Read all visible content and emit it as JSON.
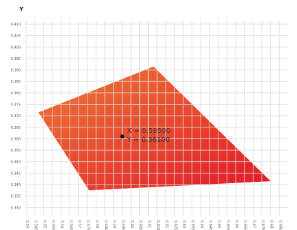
{
  "chart_data": {
    "type": "area",
    "title": "",
    "xlabel": "",
    "ylabel": "Y",
    "xlim": [
      0.54,
      0.69
    ],
    "ylim": [
      0.3265,
      0.4115
    ],
    "x_ticks": [
      "0.54",
      "0.545",
      "0.55",
      "0.555",
      "0.56",
      "0.565",
      "0.57",
      "0.575",
      "0.58",
      "0.585",
      "0.59",
      "0.595",
      "0.60",
      "0.605",
      "0.61",
      "0.615",
      "0.62",
      "0.625",
      "0.63",
      "0.635",
      "0.64",
      "0.645",
      "0.65",
      "0.655",
      "0.66",
      "0.665",
      "0.67",
      "0.675",
      "0.68",
      "0.685"
    ],
    "y_ticks": [
      "0.330",
      "0.335",
      "0.340",
      "0.345",
      "0.350",
      "0.355",
      "0.360",
      "0.365",
      "0.370",
      "0.375",
      "0.380",
      "0.385",
      "0.390",
      "0.395",
      "0.400",
      "0.405",
      "0.410"
    ],
    "grid": true,
    "polygon": {
      "x": [
        0.547,
        0.613,
        0.68,
        0.576
      ],
      "y": [
        0.3715,
        0.3915,
        0.3415,
        0.3375
      ],
      "color_light": "#ee7a34",
      "color_dark": "#e2182a"
    },
    "point": {
      "x": 0.595,
      "y": 0.361,
      "label_x": "X = 0.59500",
      "label_y": "Y = 0.36100",
      "color": "#111111"
    }
  }
}
